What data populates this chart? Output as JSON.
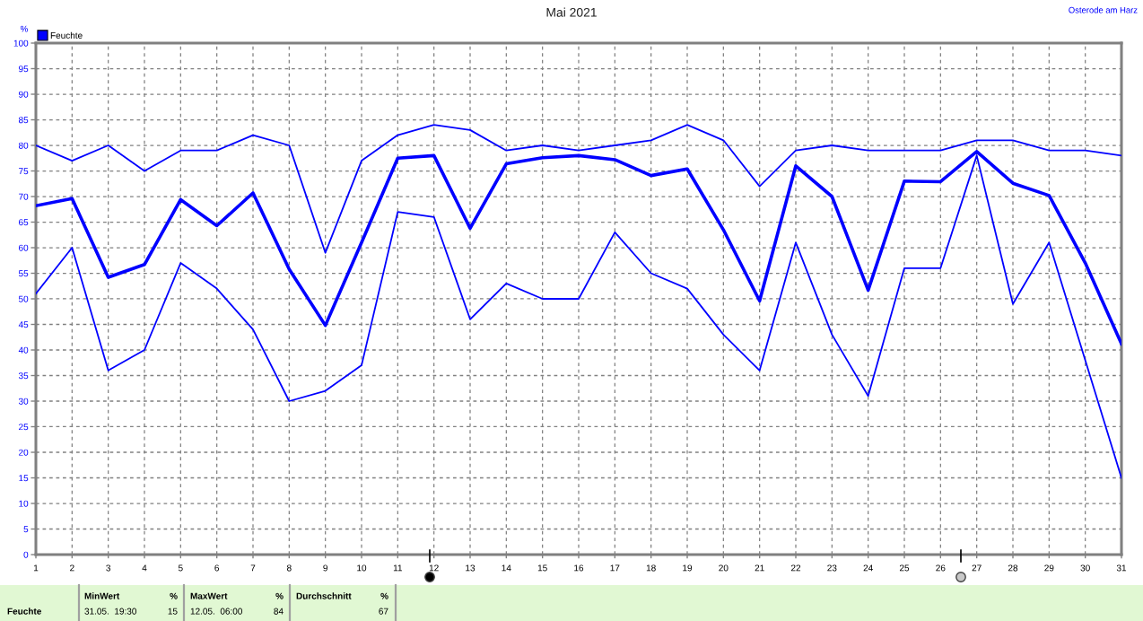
{
  "chart_data": {
    "type": "line",
    "title": "Mai 2021",
    "subtitle": "Osterode am Harz",
    "ylabel": "%",
    "x": [
      1,
      2,
      3,
      4,
      5,
      6,
      7,
      8,
      9,
      10,
      11,
      12,
      13,
      14,
      15,
      16,
      17,
      18,
      19,
      20,
      21,
      22,
      23,
      24,
      25,
      26,
      27,
      28,
      29,
      30,
      31
    ],
    "xlim": [
      1,
      31
    ],
    "xticks": [
      1,
      2,
      3,
      4,
      5,
      6,
      7,
      8,
      9,
      10,
      11,
      12,
      13,
      14,
      15,
      16,
      17,
      18,
      19,
      20,
      21,
      22,
      23,
      24,
      25,
      26,
      27,
      28,
      29,
      30,
      31
    ],
    "ylim": [
      0,
      100
    ],
    "yticks": [
      0,
      5,
      10,
      15,
      20,
      25,
      30,
      35,
      40,
      45,
      50,
      55,
      60,
      65,
      70,
      75,
      80,
      85,
      90,
      95,
      100
    ],
    "grid": true,
    "legend": "top left",
    "series": [
      {
        "color": "#0000ff",
        "values": [
          80,
          77,
          80,
          75,
          79,
          79,
          82,
          80,
          59,
          77,
          82,
          84,
          83,
          79,
          80,
          79,
          80,
          81,
          84,
          81,
          72,
          79,
          80,
          79,
          79,
          79,
          81,
          81,
          79,
          79,
          78
        ]
      },
      {
        "name": "Feuchte",
        "color": "#0000ff",
        "values": [
          68.2,
          69.6,
          54.2,
          56.7,
          69.4,
          64.3,
          70.7,
          55.8,
          44.8,
          61,
          77.5,
          78,
          63.8,
          76.4,
          77.6,
          78,
          77.2,
          74.1,
          75.4,
          63.5,
          49.6,
          76,
          70,
          51.7,
          73,
          72.9,
          78.8,
          72.6,
          70.2,
          57,
          41.2
        ]
      },
      {
        "color": "#0000ff",
        "values": [
          51,
          60,
          36,
          40,
          57,
          52,
          44,
          30,
          32,
          37,
          67,
          66,
          46,
          53,
          50,
          50,
          63,
          55,
          52,
          43,
          36,
          61,
          43,
          31,
          56,
          56,
          78,
          49,
          61,
          38,
          15
        ]
      }
    ],
    "annotations": [
      "Feuchte",
      "MinWert",
      "%",
      "31.05.  19:30",
      "15",
      "MaxWert",
      "%",
      "12.05.  06:00",
      "84",
      "Durchschnitt",
      "%",
      "67"
    ]
  }
}
